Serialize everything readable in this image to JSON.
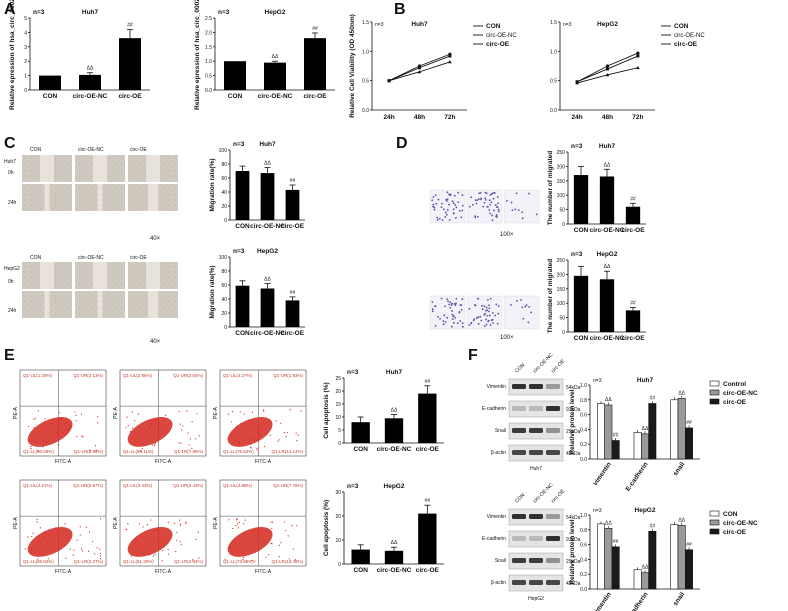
{
  "panels": {
    "A": {
      "label": "A",
      "charts": [
        {
          "cell": "Huh7",
          "n": "n=3",
          "ylabel": "Relative epression of hsa_circ_0002",
          "yticks": [
            "0",
            "1",
            "2",
            "3",
            "4",
            "5"
          ],
          "sig": [
            "",
            "ΔΔ",
            "##"
          ]
        },
        {
          "cell": "HepG2",
          "n": "n=3",
          "ylabel": "Relative epression of hsa_circ_0002",
          "yticks": [
            "0.0",
            "0.5",
            "1.0",
            "1.5",
            "2.0",
            "2.5"
          ],
          "sig": [
            "",
            "ΔΔ",
            "##"
          ]
        }
      ]
    },
    "B": {
      "label": "B",
      "ylabel": "Relative Cell Viability (OD 450nm)",
      "yticks": [
        "0.0",
        "0.5",
        "1.0",
        "1.5"
      ],
      "legend": [
        "CON",
        "circ-OE-NC",
        "circ-OE"
      ]
    },
    "C": {
      "label": "C",
      "cols": [
        "CON",
        "circ-OE-NC",
        "circ-OE"
      ],
      "rows": [
        "0h",
        "24h"
      ],
      "cells": [
        "Huh7",
        "HepG2"
      ],
      "mag": "40×",
      "n": "n=3",
      "ylabel": "Migration rate(%)",
      "yticks": [
        "0",
        "20",
        "40",
        "60",
        "80",
        "100"
      ],
      "sig": [
        "",
        "ΔΔ",
        "##"
      ]
    },
    "D": {
      "label": "D",
      "mag": "100×",
      "n": "n=3",
      "ylabel": "The number of migrated",
      "yticks": [
        "0",
        "50",
        "100",
        "150",
        "200",
        "250"
      ],
      "sig": [
        "",
        "ΔΔ",
        "##"
      ]
    },
    "E": {
      "label": "E",
      "n": "n=3",
      "ylabel": "Cell apoptosis (%)",
      "xaxis": "FITC-A",
      "yaxis": "PE-A",
      "yticks": [
        "0",
        "5",
        "10",
        "15",
        "20",
        "25"
      ],
      "sig": [
        "",
        "ΔΔ",
        "##"
      ],
      "quads": [
        [
          "Q1-UL(1.29%)",
          "Q1-UR(2.13%)",
          "Q1-LL(90.59%)",
          "Q1-LR(5.98%)"
        ],
        [
          "Q1-UL(2.86%)",
          "Q1-UR(2.64%)",
          "Q1-LL(89.11%)",
          "Q1-LR(7.95%)"
        ],
        [
          "Q1-UL(4.27%)",
          "Q1-UR(1.93%)",
          "Q1-LL(75.82%)",
          "Q1-LR(14.14%)"
        ],
        [
          "Q1-UL(4.21%)",
          "Q1-UR(5.67%)",
          "Q1-LL(89.84%)",
          "Q1-LR(2.27%)"
        ],
        [
          "Q1-UL(3.43%)",
          "Q1-UR(2.43%)",
          "Q1-LL(91.30%)",
          "Q1-LR(2.84%)"
        ],
        [
          "Q1-UL(4.88%)",
          "Q1-UR(7.78%)",
          "Q1-LL(73.86%)",
          "Q1-LR(13.49%)"
        ]
      ]
    },
    "F": {
      "label": "F",
      "lanes": [
        "CON",
        "circ-OE-NC",
        "circ-OE"
      ],
      "proteins": [
        "Vimentin",
        "E-cadherin",
        "Snail",
        "β-actin"
      ],
      "kda": [
        "54kDa",
        "97kDa",
        "29kDa",
        "42kDa"
      ],
      "n": "n=3",
      "ylabel": "Relative protein level",
      "yticks": [
        "0.0",
        "0.2",
        "0.4",
        "0.6",
        "0.8",
        "1.0"
      ],
      "groups": [
        "vimentin",
        "E-cadherin",
        "snail"
      ],
      "legend_huh7": [
        "Control",
        "circ-OE-NC",
        "circ-OE"
      ],
      "legend_hepg2": [
        "CON",
        "circ-OE-NC",
        "circ-OE"
      ],
      "sig": [
        "ΔΔ",
        "##"
      ]
    }
  },
  "colors": {
    "bar": "#000000",
    "nc": "#9a9a9a",
    "oe": "#1a1a1a",
    "ctrl": "#ffffff",
    "flow": "#d4271d",
    "quad_text": "#c0392b"
  },
  "chart_data": [
    {
      "type": "bar",
      "title": "Huh7",
      "categories": [
        "CON",
        "circ-OE-NC",
        "circ-OE"
      ],
      "values": [
        1.0,
        1.05,
        3.6
      ],
      "errors": [
        0,
        0.15,
        0.6
      ],
      "ylim": [
        0,
        5
      ],
      "ylabel": "Relative epression of hsa_circ_0002"
    },
    {
      "type": "bar",
      "title": "HepG2",
      "categories": [
        "CON",
        "circ-OE-NC",
        "circ-OE"
      ],
      "values": [
        1.0,
        0.95,
        1.8
      ],
      "errors": [
        0,
        0.05,
        0.18
      ],
      "ylim": [
        0,
        2.5
      ],
      "ylabel": "Relative epression of hsa_circ_0002"
    },
    {
      "type": "line",
      "title": "Huh7",
      "x": [
        "24h",
        "48h",
        "72h"
      ],
      "ylim": [
        0,
        1.5
      ],
      "ylabel": "Relative Cell Viability (OD 450nm)",
      "series": [
        {
          "name": "CON",
          "values": [
            0.5,
            0.75,
            0.95
          ]
        },
        {
          "name": "circ-OE-NC",
          "values": [
            0.5,
            0.72,
            0.92
          ]
        },
        {
          "name": "circ-OE",
          "values": [
            0.5,
            0.65,
            0.82
          ]
        }
      ]
    },
    {
      "type": "line",
      "title": "HepG2",
      "x": [
        "24h",
        "48h",
        "72h"
      ],
      "ylim": [
        0,
        1.5
      ],
      "ylabel": "Relative Cell Viability (OD 450nm)",
      "series": [
        {
          "name": "CON",
          "values": [
            0.48,
            0.75,
            0.97
          ]
        },
        {
          "name": "circ-OE-NC",
          "values": [
            0.48,
            0.7,
            0.92
          ]
        },
        {
          "name": "circ-OE",
          "values": [
            0.46,
            0.6,
            0.72
          ]
        }
      ]
    },
    {
      "type": "bar",
      "title": "Huh7",
      "categories": [
        "CON",
        "circ-OE-NC",
        "circ-OE"
      ],
      "values": [
        70,
        67,
        43
      ],
      "errors": [
        7,
        8,
        7
      ],
      "ylim": [
        0,
        100
      ],
      "ylabel": "Migration rate(%)"
    },
    {
      "type": "bar",
      "title": "HepG2",
      "categories": [
        "CON",
        "circ-OE-NC",
        "circ-OE"
      ],
      "values": [
        59,
        55,
        38
      ],
      "errors": [
        7,
        7,
        5
      ],
      "ylim": [
        0,
        100
      ],
      "ylabel": "Migration rate(%)"
    },
    {
      "type": "bar",
      "title": "Huh7",
      "categories": [
        "CON",
        "circ-OE-NC",
        "circ-OE"
      ],
      "values": [
        170,
        165,
        60
      ],
      "errors": [
        30,
        25,
        12
      ],
      "ylim": [
        0,
        250
      ],
      "ylabel": "The number of migrated"
    },
    {
      "type": "bar",
      "title": "HepG2",
      "categories": [
        "CON",
        "circ-OE-NC",
        "circ-OE"
      ],
      "values": [
        195,
        183,
        75
      ],
      "errors": [
        33,
        28,
        10
      ],
      "ylim": [
        0,
        250
      ],
      "ylabel": "The number of migrated"
    },
    {
      "type": "bar",
      "title": "Huh7",
      "categories": [
        "CON",
        "circ-OE-NC",
        "circ-OE"
      ],
      "values": [
        8,
        9.5,
        19
      ],
      "errors": [
        2,
        1.5,
        3
      ],
      "ylim": [
        0,
        25
      ],
      "ylabel": "Cell apoptosis (%)"
    },
    {
      "type": "bar",
      "title": "HepG2",
      "categories": [
        "CON",
        "circ-OE-NC",
        "circ-OE"
      ],
      "values": [
        6,
        5.5,
        21
      ],
      "errors": [
        2,
        1.5,
        3.5
      ],
      "ylim": [
        0,
        30
      ],
      "ylabel": "Cell apoptosis (%)"
    },
    {
      "type": "bar",
      "title": "Huh7",
      "categories": [
        "vimentin",
        "E-cadherin",
        "snail"
      ],
      "ylim": [
        0,
        1.0
      ],
      "ylabel": "Relative protein level",
      "series": [
        {
          "name": "Control",
          "values": [
            0.75,
            0.36,
            0.8
          ]
        },
        {
          "name": "circ-OE-NC",
          "values": [
            0.73,
            0.34,
            0.82
          ]
        },
        {
          "name": "circ-OE",
          "values": [
            0.25,
            0.75,
            0.42
          ]
        }
      ]
    },
    {
      "type": "bar",
      "title": "HepG2",
      "categories": [
        "vimentin",
        "E-cadherin",
        "snail"
      ],
      "ylim": [
        0,
        1.0
      ],
      "ylabel": "Relative protein level",
      "series": [
        {
          "name": "CON",
          "values": [
            0.88,
            0.26,
            0.87
          ]
        },
        {
          "name": "circ-OE-NC",
          "values": [
            0.82,
            0.22,
            0.86
          ]
        },
        {
          "name": "circ-OE",
          "values": [
            0.57,
            0.78,
            0.53
          ]
        }
      ]
    }
  ]
}
